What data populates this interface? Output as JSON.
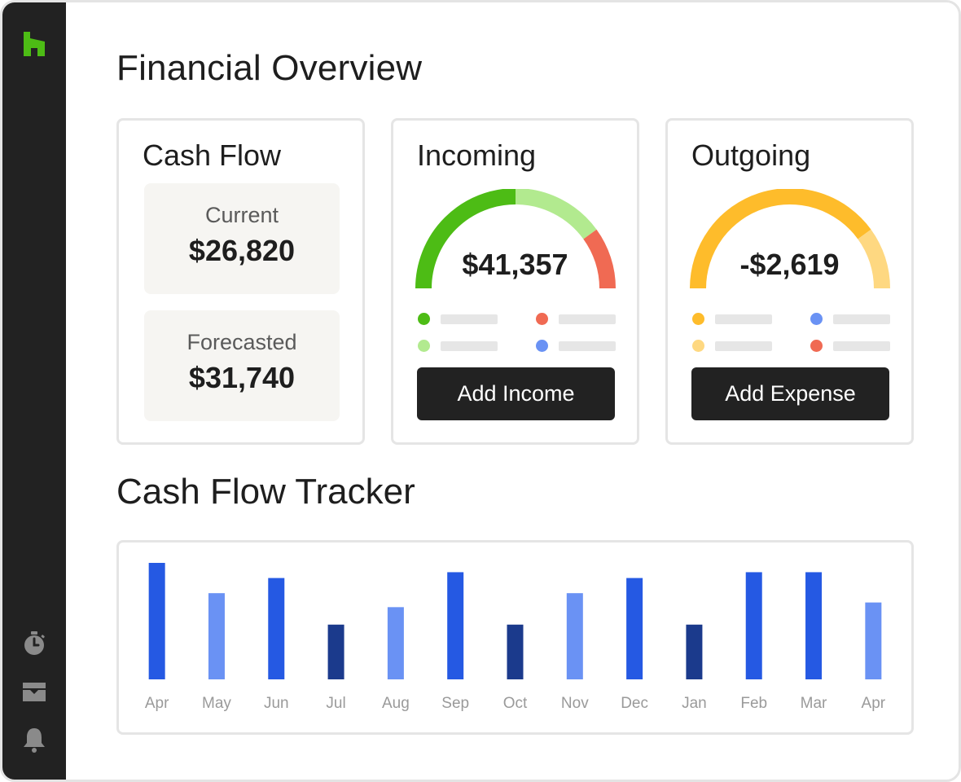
{
  "sidebar": {
    "logo": "houzz-logo-icon",
    "logo_color": "#4dbc15",
    "icons": [
      "stopwatch-icon",
      "inbox-icon",
      "bell-icon"
    ]
  },
  "page_title": "Financial Overview",
  "cash_flow": {
    "title": "Cash Flow",
    "current_label": "Current",
    "current_value": "$26,820",
    "forecast_label": "Forecasted",
    "forecast_value": "$31,740"
  },
  "incoming": {
    "title": "Incoming",
    "value": "$41,357",
    "gauge_segments": [
      {
        "fraction": 0.5,
        "color": "#4dbc15"
      },
      {
        "fraction": 0.3,
        "color": "#b2ea8f"
      },
      {
        "fraction": 0.2,
        "color": "#f06a53"
      }
    ],
    "legend_colors": [
      "#4dbc15",
      "#f06a53",
      "#b2ea8f",
      "#6a92f4"
    ],
    "button_label": "Add Income"
  },
  "outgoing": {
    "title": "Outgoing",
    "value": "-$2,619",
    "gauge_segments": [
      {
        "fraction": 0.8,
        "color": "#febc2b"
      },
      {
        "fraction": 0.2,
        "color": "#fed881"
      }
    ],
    "legend_colors": [
      "#febc2b",
      "#6a92f4",
      "#fed881",
      "#f06a53"
    ],
    "button_label": "Add Expense"
  },
  "tracker_title": "Cash Flow Tracker",
  "chart_data": {
    "type": "bar",
    "categories": [
      "Apr",
      "May",
      "Jun",
      "Jul",
      "Aug",
      "Sep",
      "Oct",
      "Nov",
      "Dec",
      "Jan",
      "Feb",
      "Mar",
      "Apr"
    ],
    "values": [
      100,
      74,
      87,
      47,
      62,
      92,
      47,
      74,
      87,
      47,
      92,
      92,
      66
    ],
    "bar_colors": [
      "#2559e3",
      "#6a92f4",
      "#2559e3",
      "#1b3a8c",
      "#6a92f4",
      "#2559e3",
      "#1b3a8c",
      "#6a92f4",
      "#2559e3",
      "#1b3a8c",
      "#2559e3",
      "#2559e3",
      "#6a92f4"
    ],
    "ylim": [
      0,
      100
    ],
    "title": "",
    "xlabel": "",
    "ylabel": "",
    "grid": false
  }
}
